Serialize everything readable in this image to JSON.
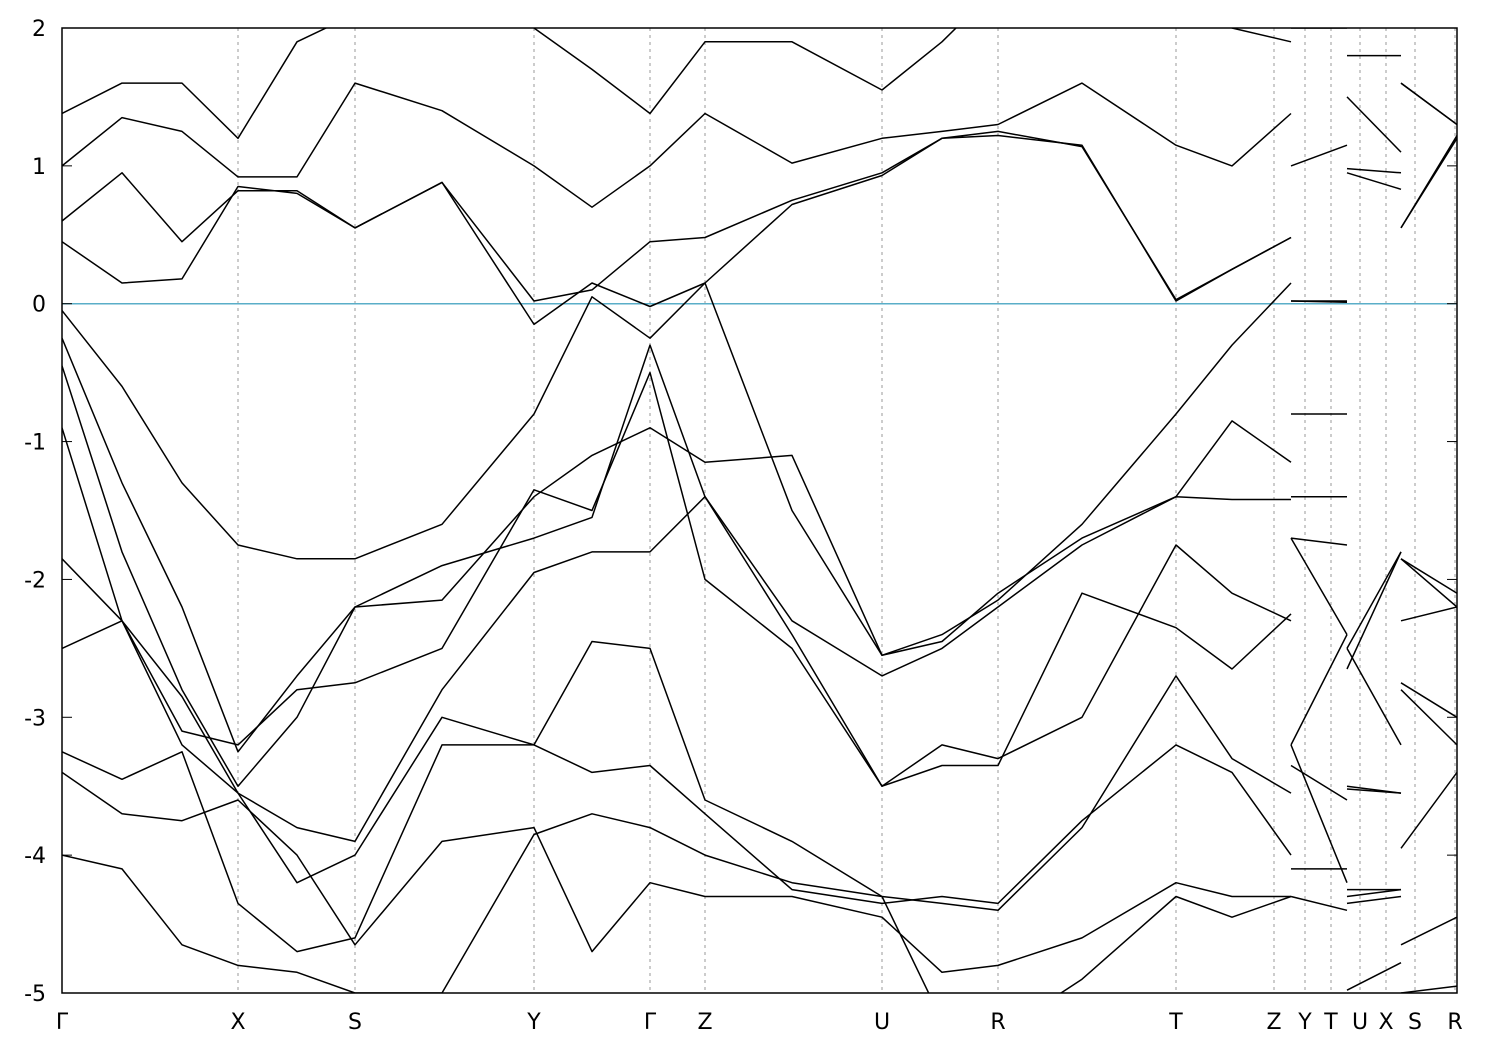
{
  "chart_data": {
    "type": "line",
    "x": [
      0,
      60,
      120,
      176,
      235,
      293,
      380,
      472,
      530,
      588,
      643,
      730,
      820,
      880,
      936,
      1020,
      1114,
      1170,
      1229,
      1229,
      1229,
      1285,
      1285,
      1285,
      1339,
      1339,
      1339,
      1395
    ],
    "xlim": [
      0,
      1395
    ],
    "xticks": [
      {
        "value": 0,
        "label": "Γ"
      },
      {
        "value": 176,
        "label": "X"
      },
      {
        "value": 293,
        "label": "S"
      },
      {
        "value": 472,
        "label": "Y"
      },
      {
        "value": 588,
        "label": "Γ"
      },
      {
        "value": 643,
        "label": "Z"
      },
      {
        "value": 820,
        "label": "U"
      },
      {
        "value": 936,
        "label": "R"
      },
      {
        "value": 1114,
        "label": "T"
      },
      {
        "value": 1212,
        "label": "Z"
      },
      {
        "value": 1243,
        "label": "Y"
      },
      {
        "value": 1269,
        "label": "T"
      },
      {
        "value": 1298,
        "label": "U"
      },
      {
        "value": 1324,
        "label": "X"
      },
      {
        "value": 1353,
        "label": "S"
      },
      {
        "value": 1393,
        "label": "R"
      }
    ],
    "ylim": [
      -5,
      2
    ],
    "yticks": [
      -5,
      -4,
      -3,
      -2,
      -1,
      0,
      1,
      2
    ],
    "grid": true,
    "hline": 0,
    "hline_color": "#5aaec8",
    "series": [
      {
        "color": "#000000",
        "values": [
          0.45,
          0.15,
          0.18,
          0.85,
          0.8,
          0.55,
          0.88,
          0.02,
          0.1,
          0.45,
          0.48,
          0.75,
          0.95,
          1.2,
          1.22,
          1.15,
          0.02,
          0.25,
          0.48,
          null,
          0.02,
          0.01,
          null,
          0.95,
          0.83,
          null,
          0.55,
          1.22
        ]
      },
      {
        "color": "#000000",
        "values": [
          0.6,
          0.95,
          0.45,
          0.82,
          0.82,
          0.55,
          0.88,
          -0.15,
          0.15,
          -0.02,
          0.15,
          0.72,
          0.93,
          1.2,
          1.25,
          1.14,
          0.03,
          0.25,
          0.48,
          null,
          0.02,
          0.02,
          null,
          0.98,
          0.95,
          null,
          0.55,
          1.2
        ]
      },
      {
        "color": "#000000",
        "values": [
          1.0,
          1.35,
          1.25,
          0.92,
          0.92,
          1.6,
          1.4,
          1.0,
          0.7,
          1.0,
          1.38,
          1.02,
          1.2,
          1.25,
          1.3,
          1.6,
          1.15,
          1.0,
          1.38,
          null,
          1.0,
          1.15,
          null,
          1.5,
          1.1,
          null,
          1.6,
          1.3
        ]
      },
      {
        "color": "#000000",
        "values": [
          1.38,
          1.6,
          1.6,
          1.2,
          1.9,
          2.1,
          2.5,
          2.0,
          1.7,
          1.38,
          1.9,
          1.9,
          1.55,
          1.9,
          2.3,
          2.2,
          2.2,
          2.0,
          1.9,
          null,
          2.0,
          2.0,
          null,
          1.8,
          1.8,
          null,
          1.6,
          1.3
        ]
      },
      {
        "color": "#000000",
        "values": [
          -0.05,
          -0.6,
          -1.3,
          -1.75,
          -1.85,
          -1.85,
          -1.6,
          -0.8,
          0.05,
          -0.25,
          0.15,
          -1.5,
          -2.55,
          -2.4,
          -2.15,
          -1.6,
          -0.8,
          -0.3,
          0.15,
          null,
          -0.8,
          -0.8,
          null,
          -2.5,
          -1.8,
          null,
          -1.85,
          -2.1
        ]
      },
      {
        "color": "#000000",
        "values": [
          -0.25,
          -1.3,
          -2.2,
          -3.25,
          -2.7,
          -2.2,
          -2.15,
          -1.4,
          -1.1,
          -0.9,
          -1.15,
          -1.1,
          -2.55,
          -2.45,
          -2.1,
          -1.7,
          -1.4,
          -0.85,
          -1.15,
          null,
          -1.4,
          -1.4,
          null,
          -2.65,
          -1.8,
          null,
          -2.75,
          -3.0
        ]
      },
      {
        "color": "#000000",
        "values": [
          -0.45,
          -1.8,
          -2.8,
          -3.5,
          -3.0,
          -2.2,
          -1.9,
          -1.7,
          -1.55,
          -0.3,
          -1.4,
          -2.3,
          -2.7,
          -2.5,
          -2.2,
          -1.75,
          -1.4,
          -1.42,
          -1.42,
          null,
          -1.7,
          -1.75,
          null,
          -2.5,
          -3.2,
          null,
          -2.3,
          -2.2
        ]
      },
      {
        "color": "#000000",
        "values": [
          -0.9,
          -2.3,
          -3.1,
          -3.2,
          -2.8,
          -2.75,
          -2.5,
          -1.35,
          -1.5,
          -0.5,
          -2.0,
          -2.5,
          -3.5,
          -3.2,
          -3.3,
          -3.0,
          -1.75,
          -2.1,
          -2.3,
          null,
          -1.7,
          -2.4,
          null,
          -3.5,
          -3.55,
          null,
          -1.85,
          -2.2
        ]
      },
      {
        "color": "#000000",
        "values": [
          -1.85,
          -2.3,
          -3.2,
          -3.55,
          -3.8,
          -3.9,
          -2.8,
          -1.95,
          -1.8,
          -1.8,
          -1.4,
          -2.4,
          -3.5,
          -3.35,
          -3.35,
          -2.1,
          -2.35,
          -2.65,
          -2.25,
          null,
          -3.2,
          -2.4,
          null,
          -4.3,
          -4.25,
          null,
          -2.8,
          -3.2
        ]
      },
      {
        "color": "#000000",
        "values": [
          -2.5,
          -2.3,
          -2.85,
          -3.55,
          -4.2,
          -4.0,
          -3.0,
          -3.2,
          -2.45,
          -2.5,
          -3.6,
          -3.9,
          -4.3,
          -4.35,
          -4.4,
          -3.8,
          -2.7,
          -3.3,
          -3.55,
          null,
          -3.35,
          -3.6,
          null,
          -4.98,
          -4.78,
          null,
          -3.95,
          -3.4
        ]
      },
      {
        "color": "#000000",
        "values": [
          -3.25,
          -3.45,
          -3.25,
          -4.35,
          -4.7,
          -4.6,
          -3.2,
          -3.2,
          -3.4,
          -3.35,
          -3.7,
          -4.25,
          -4.35,
          -4.3,
          -4.35,
          -3.75,
          -3.2,
          -3.4,
          -4.0,
          null,
          -3.2,
          -4.2,
          null,
          -3.52,
          -3.55,
          null,
          -4.65,
          -4.45
        ]
      },
      {
        "color": "#000000",
        "values": [
          -3.4,
          -3.7,
          -3.75,
          -3.6,
          -4.0,
          -4.65,
          -3.9,
          -3.8,
          -4.7,
          -4.2,
          -4.3,
          -4.3,
          -4.45,
          -4.85,
          -4.8,
          -4.6,
          -4.2,
          -4.3,
          -4.3,
          null,
          -4.1,
          -4.1,
          null,
          -4.25,
          -4.25,
          null,
          -5.0,
          -4.95
        ]
      },
      {
        "color": "#000000",
        "values": [
          -4.0,
          -4.1,
          -4.65,
          -4.8,
          -4.85,
          -5.0,
          -5.0,
          -3.85,
          -3.7,
          -3.8,
          -4.0,
          -4.2,
          -4.3,
          -5.2,
          -5.3,
          -4.9,
          -4.3,
          -4.45,
          -4.3,
          null,
          -4.3,
          -4.4,
          null,
          -4.35,
          -4.3,
          null,
          -5.1,
          -5.05
        ]
      }
    ]
  }
}
